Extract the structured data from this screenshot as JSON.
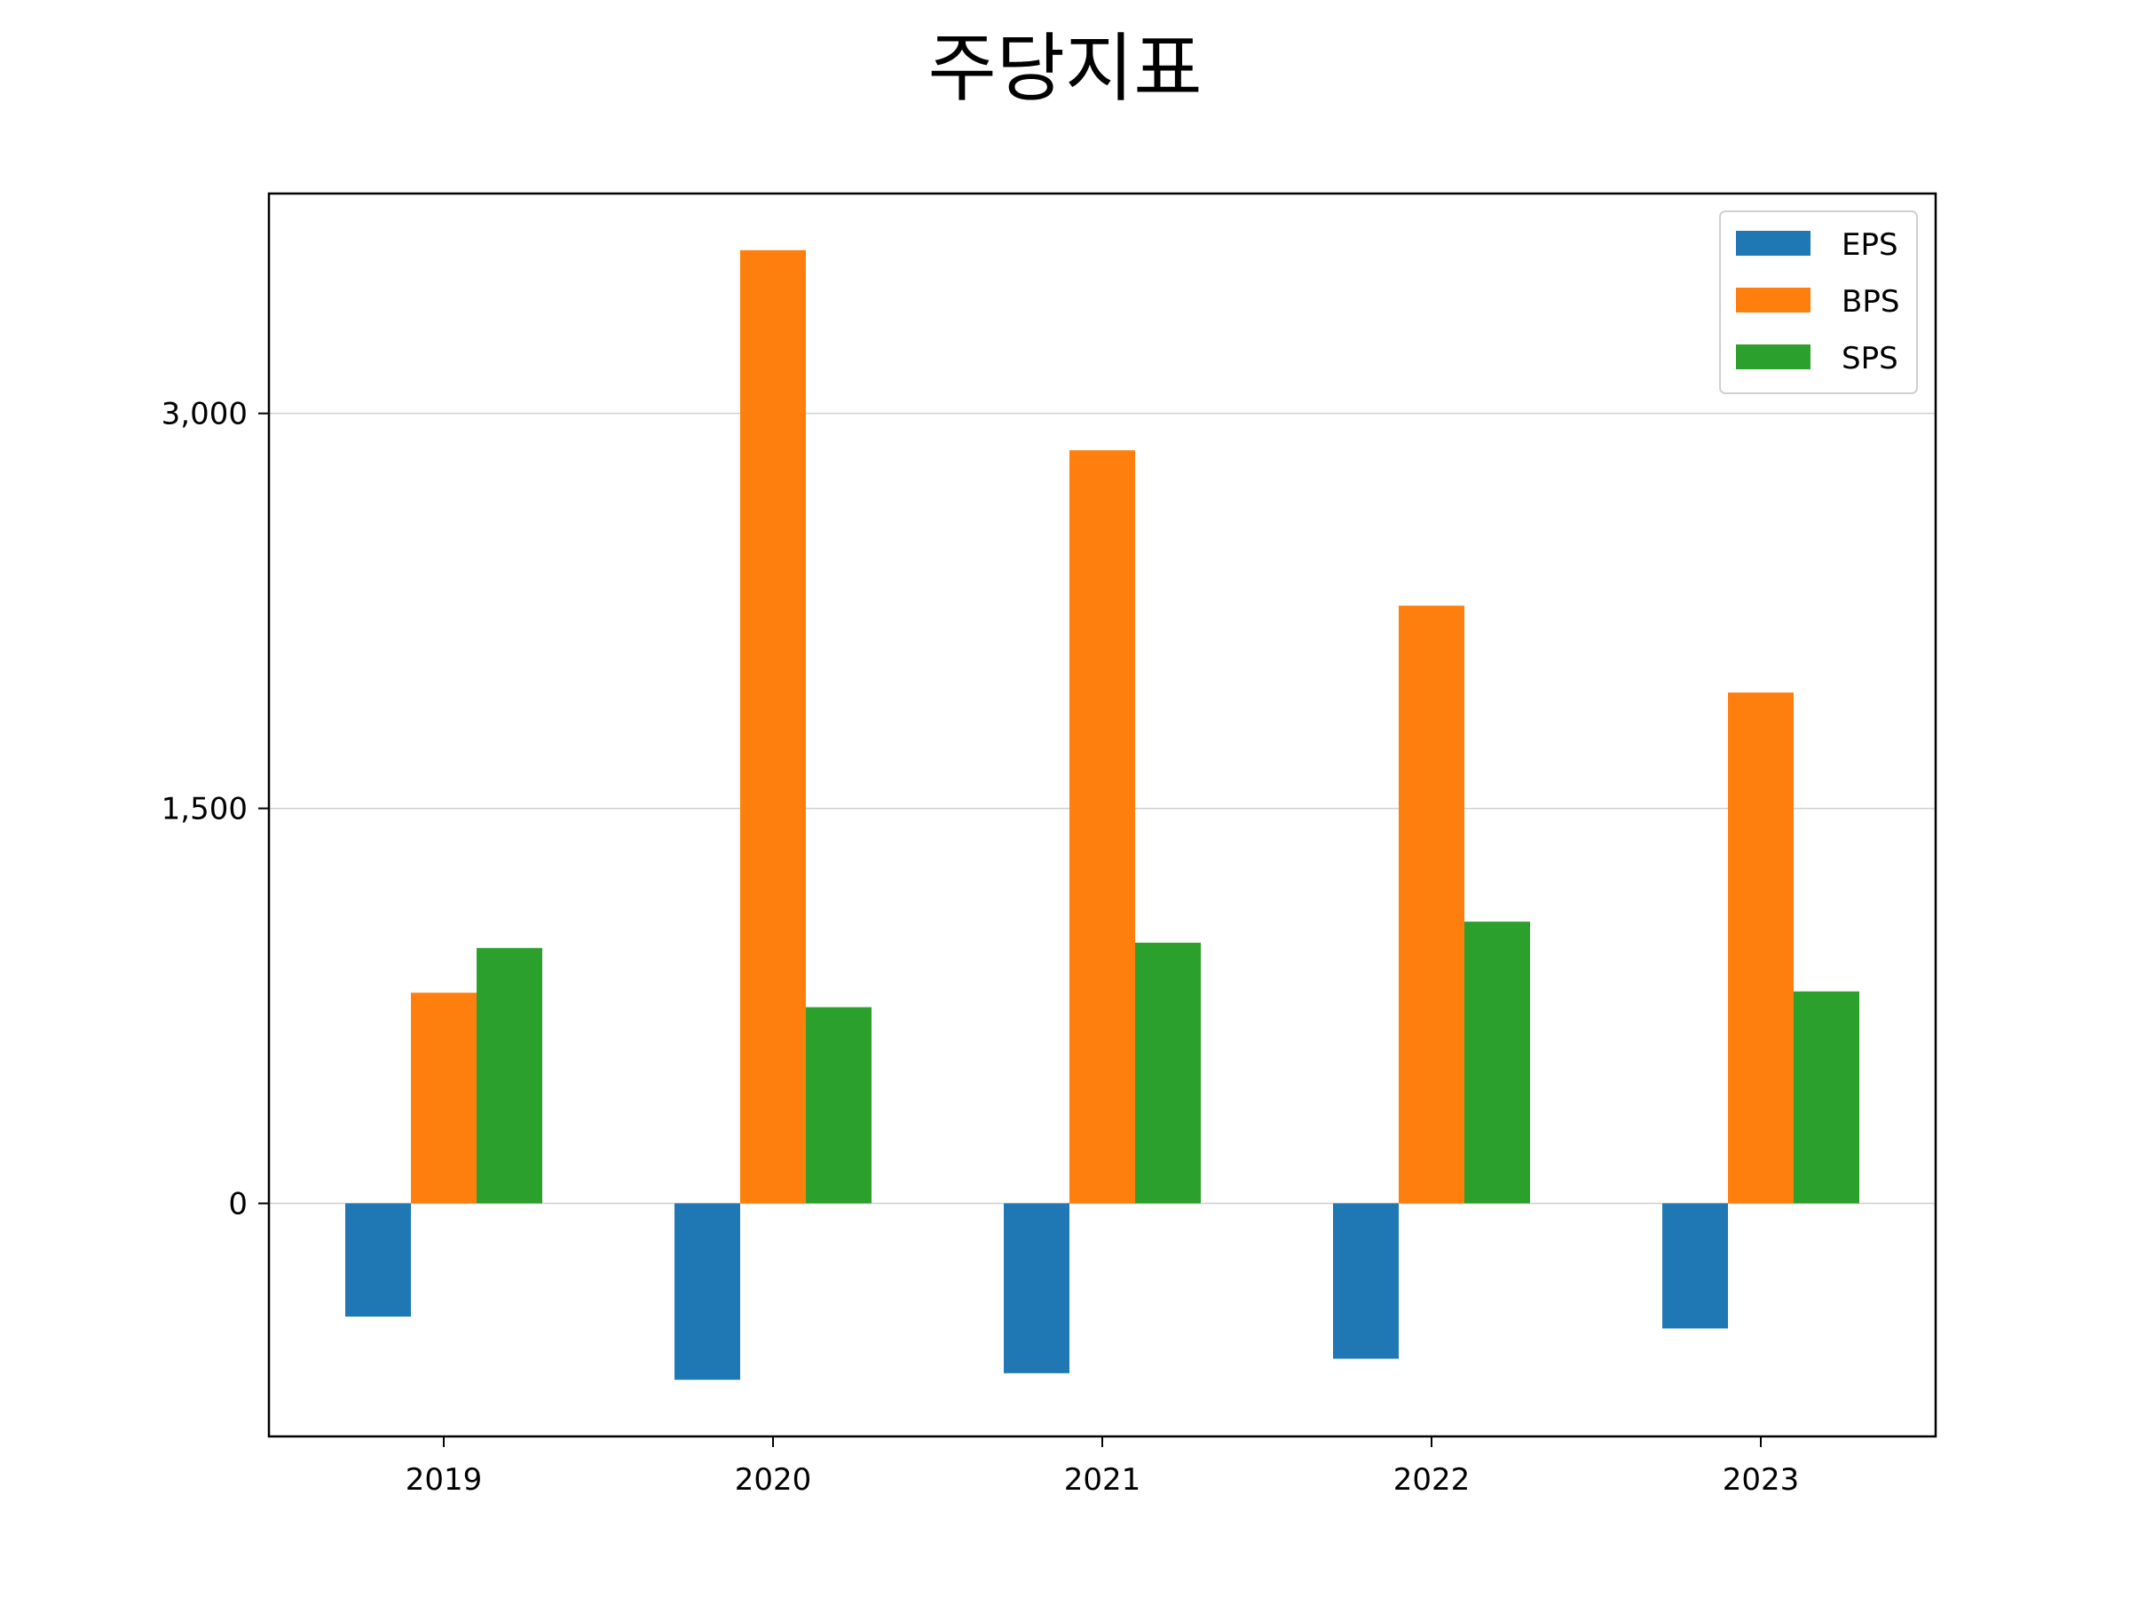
{
  "chart_data": {
    "type": "bar",
    "title": "주당지표",
    "xlabel": "",
    "ylabel": "",
    "categories": [
      "2019",
      "2020",
      "2021",
      "2022",
      "2023"
    ],
    "series": [
      {
        "name": "EPS",
        "color": "#1f77b4",
        "values": [
          -430,
          -670,
          -645,
          -590,
          -475
        ]
      },
      {
        "name": "BPS",
        "color": "#ff7f0e",
        "values": [
          800,
          3620,
          2860,
          2270,
          1940
        ]
      },
      {
        "name": "SPS",
        "color": "#2ca02c",
        "values": [
          970,
          745,
          990,
          1070,
          805
        ]
      }
    ],
    "yticks": [
      0,
      1500,
      3000
    ],
    "ytick_labels": [
      "0",
      "1,500",
      "3,000"
    ],
    "ylim": [
      -885,
      3835
    ],
    "grid": "y",
    "legend_position": "top-right"
  }
}
